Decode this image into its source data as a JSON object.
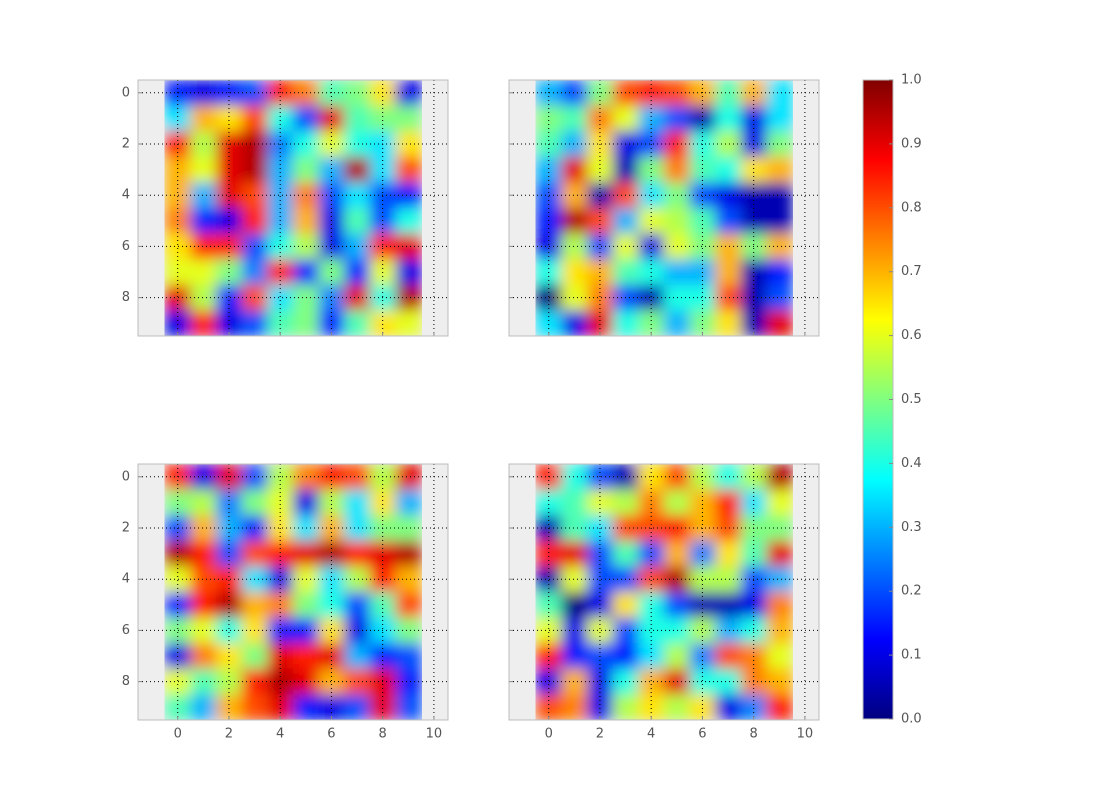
{
  "chart_data": [
    {
      "type": "heatmap",
      "colormap": "jet",
      "clim": [
        0,
        1
      ],
      "xlim": [
        -1.55,
        10.55
      ],
      "ylim": [
        9.5,
        -0.5
      ],
      "xticks": [
        0,
        2,
        4,
        6,
        8,
        10
      ],
      "yticks": [
        0,
        2,
        4,
        6,
        8
      ],
      "x_tick_labels": false,
      "y_tick_labels": true,
      "grid": true,
      "values": [
        [
          0.15,
          0.1,
          0.15,
          0.2,
          0.85,
          0.75,
          0.45,
          0.5,
          0.65,
          0.1
        ],
        [
          0.35,
          0.7,
          0.65,
          0.8,
          0.4,
          0.2,
          0.9,
          0.45,
          0.5,
          0.5
        ],
        [
          0.85,
          0.55,
          0.9,
          0.95,
          0.25,
          0.4,
          0.6,
          0.4,
          0.35,
          0.65
        ],
        [
          0.7,
          0.6,
          0.9,
          0.95,
          0.3,
          0.5,
          0.3,
          0.95,
          0.35,
          0.8
        ],
        [
          0.7,
          0.3,
          0.9,
          0.8,
          0.3,
          0.75,
          0.2,
          0.35,
          0.2,
          0.15
        ],
        [
          0.75,
          0.15,
          0.1,
          0.85,
          0.3,
          0.7,
          0.1,
          0.45,
          0.2,
          0.4
        ],
        [
          0.65,
          0.85,
          0.85,
          0.2,
          0.4,
          0.55,
          0.1,
          0.3,
          0.85,
          0.9
        ],
        [
          0.6,
          0.6,
          0.5,
          0.25,
          0.85,
          0.15,
          0.5,
          0.15,
          0.6,
          0.1
        ],
        [
          0.9,
          0.55,
          0.15,
          0.8,
          0.35,
          0.5,
          0.25,
          0.9,
          0.4,
          0.95
        ],
        [
          0.1,
          0.85,
          0.1,
          0.2,
          0.45,
          0.5,
          0.15,
          0.45,
          0.65,
          0.6
        ]
      ]
    },
    {
      "type": "heatmap",
      "colormap": "jet",
      "clim": [
        0,
        1
      ],
      "xlim": [
        -1.55,
        10.55
      ],
      "ylim": [
        9.5,
        -0.5
      ],
      "xticks": [
        0,
        2,
        4,
        6,
        8,
        10
      ],
      "yticks": [
        0,
        2,
        4,
        6,
        8
      ],
      "x_tick_labels": false,
      "y_tick_labels": false,
      "grid": true,
      "values": [
        [
          0.3,
          0.2,
          0.5,
          0.8,
          0.85,
          0.8,
          0.7,
          0.45,
          0.7,
          0.35
        ],
        [
          0.5,
          0.45,
          0.75,
          0.6,
          0.3,
          0.2,
          0.05,
          0.4,
          0.1,
          0.35
        ],
        [
          0.45,
          0.3,
          0.65,
          0.1,
          0.2,
          0.85,
          0.4,
          0.55,
          0.1,
          0.5
        ],
        [
          0.3,
          0.9,
          0.6,
          0.05,
          0.5,
          0.75,
          0.45,
          0.4,
          0.65,
          0.7
        ],
        [
          0.2,
          0.7,
          0.05,
          0.8,
          0.35,
          0.5,
          0.2,
          0.1,
          0.05,
          0.05
        ],
        [
          0.15,
          0.95,
          0.8,
          0.3,
          0.6,
          0.55,
          0.45,
          0.2,
          0.05,
          0.05
        ],
        [
          0.1,
          0.55,
          0.2,
          0.6,
          0.1,
          0.6,
          0.5,
          0.7,
          0.5,
          0.7
        ],
        [
          0.4,
          0.65,
          0.7,
          0.45,
          0.4,
          0.3,
          0.3,
          0.7,
          0.05,
          0.15
        ],
        [
          0.0,
          0.6,
          0.75,
          0.2,
          0.05,
          0.4,
          0.4,
          0.8,
          0.05,
          0.2
        ],
        [
          0.35,
          0.1,
          0.9,
          0.4,
          0.5,
          0.3,
          0.5,
          0.65,
          0.05,
          0.9
        ]
      ]
    },
    {
      "type": "heatmap",
      "colormap": "jet",
      "clim": [
        0,
        1
      ],
      "xlim": [
        -1.55,
        10.55
      ],
      "ylim": [
        9.5,
        -0.5
      ],
      "xticks": [
        0,
        2,
        4,
        6,
        8,
        10
      ],
      "yticks": [
        0,
        2,
        4,
        6,
        8
      ],
      "x_tick_labels": true,
      "y_tick_labels": true,
      "grid": true,
      "values": [
        [
          0.85,
          0.1,
          0.9,
          0.2,
          0.55,
          0.75,
          0.85,
          0.8,
          0.55,
          0.9
        ],
        [
          0.5,
          0.55,
          0.25,
          0.5,
          0.6,
          0.1,
          0.55,
          0.35,
          0.65,
          0.3
        ],
        [
          0.2,
          0.7,
          0.3,
          0.15,
          0.65,
          0.35,
          0.7,
          0.35,
          0.5,
          0.5
        ],
        [
          0.95,
          0.85,
          0.2,
          0.8,
          0.85,
          0.9,
          0.95,
          0.85,
          0.9,
          0.95
        ],
        [
          0.6,
          0.8,
          0.85,
          0.35,
          0.1,
          0.6,
          0.35,
          0.55,
          0.85,
          0.7
        ],
        [
          0.15,
          0.85,
          0.95,
          0.7,
          0.75,
          0.5,
          0.4,
          0.2,
          0.45,
          0.8
        ],
        [
          0.5,
          0.6,
          0.4,
          0.65,
          0.15,
          0.15,
          0.65,
          0.1,
          0.35,
          0.5
        ],
        [
          0.1,
          0.75,
          0.65,
          0.5,
          0.9,
          0.85,
          0.9,
          0.3,
          0.15,
          0.2
        ],
        [
          0.6,
          0.45,
          0.55,
          0.85,
          0.95,
          0.9,
          0.7,
          0.8,
          0.9,
          0.15
        ],
        [
          0.45,
          0.3,
          0.7,
          0.8,
          0.9,
          0.15,
          0.1,
          0.2,
          0.9,
          0.2
        ]
      ]
    },
    {
      "type": "heatmap",
      "colormap": "jet",
      "clim": [
        0,
        1
      ],
      "xlim": [
        -1.55,
        10.55
      ],
      "ylim": [
        9.5,
        -0.5
      ],
      "xticks": [
        0,
        2,
        4,
        6,
        8,
        10
      ],
      "yticks": [
        0,
        2,
        4,
        6,
        8
      ],
      "x_tick_labels": true,
      "y_tick_labels": false,
      "grid": true,
      "values": [
        [
          0.85,
          0.4,
          0.2,
          0.05,
          0.65,
          0.8,
          0.55,
          0.4,
          0.55,
          0.95
        ],
        [
          0.4,
          0.45,
          0.6,
          0.55,
          0.75,
          0.55,
          0.7,
          0.85,
          0.35,
          0.6
        ],
        [
          0.05,
          0.45,
          0.35,
          0.8,
          0.8,
          0.85,
          0.7,
          0.8,
          0.5,
          0.5
        ],
        [
          0.85,
          0.9,
          0.2,
          0.45,
          0.2,
          0.7,
          0.25,
          0.65,
          0.45,
          0.9
        ],
        [
          0.05,
          0.6,
          0.2,
          0.2,
          0.8,
          0.95,
          0.55,
          0.55,
          0.2,
          0.3
        ],
        [
          0.45,
          0.0,
          0.1,
          0.65,
          0.4,
          0.2,
          0.05,
          0.05,
          0.1,
          0.75
        ],
        [
          0.6,
          0.1,
          0.6,
          0.2,
          0.4,
          0.4,
          0.55,
          0.3,
          0.4,
          0.7
        ],
        [
          0.85,
          0.15,
          0.2,
          0.15,
          0.35,
          0.55,
          0.25,
          0.8,
          0.75,
          0.6
        ],
        [
          0.1,
          0.7,
          0.1,
          0.4,
          0.7,
          0.9,
          0.4,
          0.4,
          0.75,
          0.7
        ],
        [
          0.8,
          0.75,
          0.1,
          0.55,
          0.65,
          0.55,
          0.65,
          0.1,
          0.25,
          0.85
        ]
      ]
    },
    {
      "type": "colorbar",
      "colormap": "jet",
      "ylim": [
        0,
        1
      ],
      "yticks": [
        {
          "value": 0,
          "label": "0.0"
        },
        0.1,
        0.2,
        0.3,
        0.4,
        0.5,
        0.6,
        0.7,
        0.8,
        0.9,
        {
          "value": 1,
          "label": "1.0"
        }
      ]
    }
  ]
}
